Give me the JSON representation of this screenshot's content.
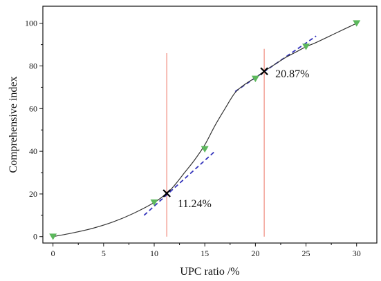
{
  "chart_data": {
    "type": "line",
    "title": "",
    "xlabel": "UPC ratio /%",
    "ylabel": "Comprehensive index",
    "xlim": [
      -1,
      32
    ],
    "ylim": [
      -3,
      108
    ],
    "x_ticks": [
      0,
      5,
      10,
      15,
      20,
      25,
      30
    ],
    "y_ticks": [
      0,
      20,
      40,
      60,
      80,
      100
    ],
    "grid": false,
    "legend": "none",
    "series": [
      {
        "kind": "points",
        "marker": "triangle-down",
        "color": "#5cb85c",
        "x": [
          0,
          10,
          15,
          20,
          25,
          30
        ],
        "y": [
          0,
          16,
          41,
          74,
          89,
          100
        ]
      },
      {
        "kind": "fitted-curve",
        "color": "#333333",
        "x": [
          0,
          2,
          4,
          6,
          8,
          10,
          11.24,
          12,
          13,
          14,
          15,
          16,
          17,
          18,
          19,
          20,
          20.87,
          22,
          23,
          24,
          25,
          26,
          28,
          30
        ],
        "y": [
          0,
          1.8,
          4,
          7,
          11,
          16,
          20.3,
          24,
          30,
          36,
          43,
          52,
          60,
          67.5,
          71.5,
          74.5,
          77.5,
          81,
          84,
          86.5,
          89,
          91,
          95.5,
          100
        ]
      }
    ],
    "tangent_lines": [
      {
        "color": "#3333bb",
        "x": [
          9,
          16
        ],
        "y": [
          10,
          40
        ]
      },
      {
        "color": "#3333bb",
        "x": [
          18,
          26
        ],
        "y": [
          68,
          94
        ]
      }
    ],
    "vertical_lines": [
      {
        "color": "#f08a7c",
        "x": 11.24,
        "y_range": [
          0,
          86
        ]
      },
      {
        "color": "#f08a7c",
        "x": 20.87,
        "y_range": [
          0,
          88
        ]
      }
    ],
    "annotations": [
      {
        "x": 11.24,
        "y": 20.3,
        "marker": "x",
        "label": "11.24%"
      },
      {
        "x": 20.87,
        "y": 77.5,
        "marker": "x",
        "label": "20.87%"
      }
    ]
  }
}
